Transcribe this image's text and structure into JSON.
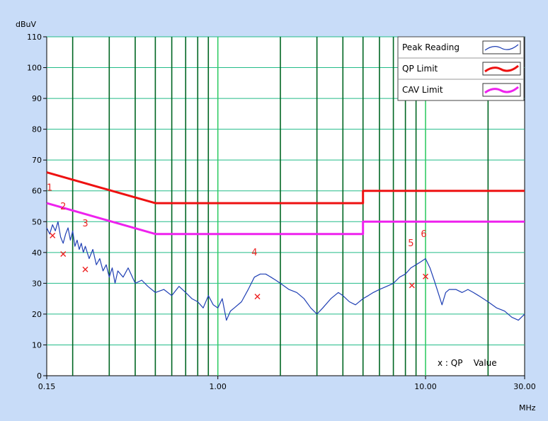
{
  "chart_data": {
    "type": "line",
    "ylabel": "dBuV",
    "xlabel": "MHz",
    "x_scale": "log",
    "xlim": [
      0.15,
      30
    ],
    "ylim": [
      0,
      110
    ],
    "y_ticks": [
      0,
      10,
      20,
      30,
      40,
      50,
      60,
      70,
      80,
      90,
      100,
      110
    ],
    "y_tick_labels": [
      "0",
      "10",
      "20",
      "30",
      "40",
      "50",
      "60",
      "70",
      "80",
      "90",
      "100",
      "110"
    ],
    "x_ticks": [
      0.15,
      1,
      10,
      30
    ],
    "x_tick_labels": [
      "0.15",
      "1.00",
      "10.00",
      "30.00"
    ],
    "grid": true,
    "legend_position": "top-right",
    "colors": {
      "background": "#c8dcf8",
      "plot_bg": "#ffffff",
      "h_grid": "#22bb88",
      "v_grid": "#006622",
      "v_grid_light": "#33cc66",
      "peak": "#1f3fb4",
      "qp_limit": "#ee1111",
      "cav_limit": "#ee22ee",
      "qp_marker": "#ee2222"
    },
    "series": [
      {
        "name": "Peak Reading",
        "x": [
          0.15,
          0.155,
          0.16,
          0.165,
          0.17,
          0.175,
          0.18,
          0.185,
          0.19,
          0.195,
          0.2,
          0.205,
          0.21,
          0.215,
          0.22,
          0.225,
          0.23,
          0.24,
          0.25,
          0.26,
          0.27,
          0.28,
          0.29,
          0.3,
          0.31,
          0.32,
          0.33,
          0.35,
          0.37,
          0.4,
          0.43,
          0.46,
          0.5,
          0.55,
          0.6,
          0.65,
          0.7,
          0.75,
          0.8,
          0.85,
          0.9,
          0.95,
          1.0,
          1.05,
          1.1,
          1.15,
          1.2,
          1.3,
          1.4,
          1.5,
          1.6,
          1.7,
          1.8,
          1.9,
          2.0,
          2.2,
          2.4,
          2.6,
          2.8,
          3.0,
          3.2,
          3.5,
          3.8,
          4.0,
          4.3,
          4.6,
          5.0,
          5.3,
          5.6,
          6.0,
          6.5,
          7.0,
          7.5,
          8.0,
          8.5,
          9.0,
          9.5,
          10.0,
          10.5,
          11.0,
          11.5,
          12.0,
          12.5,
          13.0,
          14.0,
          15.0,
          16.0,
          17.0,
          18.0,
          20.0,
          22.0,
          24.0,
          26.0,
          28.0,
          30.0
        ],
        "y": [
          48,
          46,
          49,
          47,
          50,
          45,
          43,
          46,
          48,
          44,
          47,
          42,
          44,
          41,
          43,
          40,
          42,
          38,
          41,
          36,
          38,
          34,
          36,
          32,
          35,
          30,
          34,
          32,
          35,
          30,
          31,
          29,
          27,
          28,
          26,
          29,
          27,
          25,
          24,
          22,
          26,
          23,
          22,
          25,
          18,
          21,
          22,
          24,
          28,
          32,
          33,
          33,
          32,
          31,
          30,
          28,
          27,
          25,
          22,
          20,
          22,
          25,
          27,
          26,
          24,
          23,
          25,
          26,
          27,
          28,
          29,
          30,
          32,
          33,
          35,
          36,
          37,
          38,
          35,
          31,
          27,
          23,
          27,
          28,
          28,
          27,
          28,
          27,
          26,
          24,
          22,
          21,
          19,
          18,
          20
        ]
      },
      {
        "name": "QP Limit",
        "x": [
          0.15,
          0.5,
          0.5,
          5.0,
          5.0,
          30.0
        ],
        "y": [
          66,
          56,
          56,
          56,
          60,
          60
        ]
      },
      {
        "name": "CAV Limit",
        "x": [
          0.15,
          0.5,
          0.5,
          5.0,
          5.0,
          30.0
        ],
        "y": [
          56,
          46,
          46,
          46,
          50,
          50
        ]
      }
    ],
    "qp_values": {
      "legend_label": "x : QP    Value",
      "points": [
        {
          "label": "1",
          "x": 0.16,
          "y": 45.5
        },
        {
          "label": "2",
          "x": 0.18,
          "y": 39.5
        },
        {
          "label": "3",
          "x": 0.23,
          "y": 34.5
        },
        {
          "label": "4",
          "x": 1.55,
          "y": 25.7
        },
        {
          "label": "5",
          "x": 8.6,
          "y": 29.3
        },
        {
          "label": "6",
          "x": 10.0,
          "y": 32.2
        }
      ]
    }
  }
}
